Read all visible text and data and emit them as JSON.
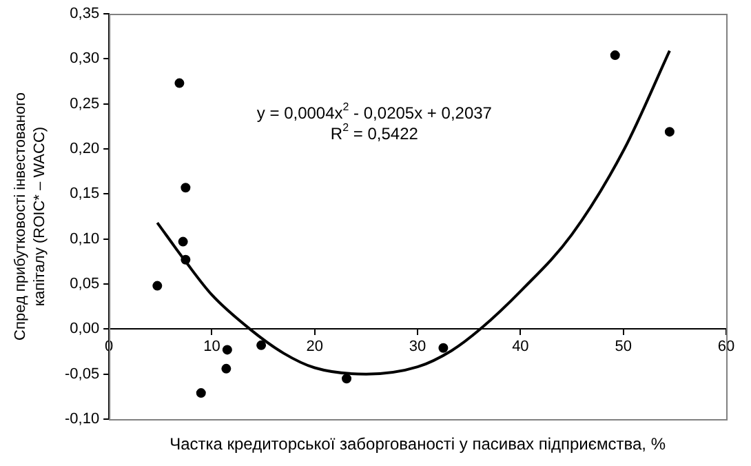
{
  "chart_data": {
    "type": "scatter",
    "xlabel": "Частка кредиторської заборгованості у пасивах підприємства, %",
    "ylabel": "Спред прибутковості інвестованого\nкапіталу (ROIC* – WACC)",
    "marker": "circle",
    "grid": false,
    "legend": false,
    "xlim": [
      0,
      60
    ],
    "xticks": [
      0,
      10,
      20,
      30,
      40,
      50,
      60
    ],
    "ylim": [
      -0.1,
      0.35
    ],
    "yticks": [
      {
        "value": -0.1,
        "label": "-0,10"
      },
      {
        "value": -0.05,
        "label": "-0,05"
      },
      {
        "value": 0,
        "label": "0,00"
      },
      {
        "value": 0.05,
        "label": "0,05"
      },
      {
        "value": 0.1,
        "label": "0,10"
      },
      {
        "value": 0.15,
        "label": "0,15"
      },
      {
        "value": 0.2,
        "label": "0,20"
      },
      {
        "value": 0.25,
        "label": "0,25"
      },
      {
        "value": 0.3,
        "label": "0,30"
      },
      {
        "value": 0.35,
        "label": "0,35"
      }
    ],
    "series": [
      {
        "type": "scatter",
        "color": "#000000",
        "x": [
          4.7,
          6.85,
          7.45,
          7.2,
          7.45,
          8.95,
          11.5,
          11.4,
          14.8,
          23.1,
          32.5,
          49.2,
          54.5
        ],
        "values": [
          0.048,
          0.273,
          0.157,
          0.097,
          0.077,
          -0.071,
          -0.023,
          -0.044,
          -0.018,
          -0.055,
          -0.021,
          0.304,
          0.219
        ]
      },
      {
        "type": "line",
        "color": "#000000",
        "marker": "none",
        "x": [
          4.7,
          7.45,
          10,
          13.7,
          17,
          20,
          25,
          30,
          33.3,
          36.1,
          40.1,
          45,
          50.1,
          54.5
        ],
        "values": [
          0.118,
          0.075,
          0.038,
          0.0,
          -0.027,
          -0.043,
          -0.05,
          -0.042,
          -0.024,
          0.0,
          0.043,
          0.105,
          0.2,
          0.309
        ]
      }
    ],
    "annotations": [
      "y = 0,0004x$^{2}$ - 0,0205x + 0,2037",
      "R$^{2}$ = 0,5422"
    ]
  }
}
